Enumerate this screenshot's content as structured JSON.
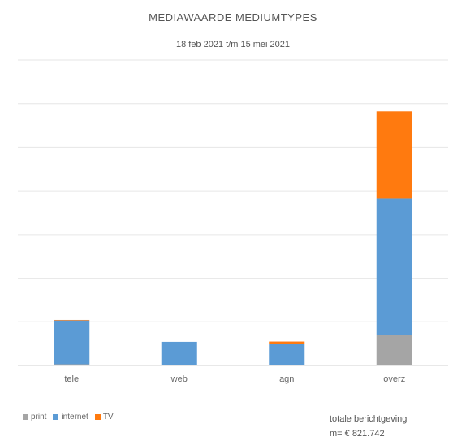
{
  "chart_data": {
    "type": "bar",
    "stacked": true,
    "title": "MEDIAWAARDE MEDIUMTYPES",
    "subtitle": "18 feb 2021 t/m 15 mei 2021",
    "categories": [
      "tele",
      "web",
      "agn",
      "overz"
    ],
    "series": [
      {
        "name": "print",
        "color": "#a5a5a5",
        "values": [
          12000,
          2000,
          5000,
          300000
        ]
      },
      {
        "name": "internet",
        "color": "#5b9bd5",
        "values": [
          430000,
          230000,
          210000,
          1340000
        ]
      },
      {
        "name": "TV",
        "color": "#ff7a0f",
        "values": [
          5000,
          0,
          20000,
          855000
        ]
      }
    ],
    "ylim": [
      0,
      3000000
    ],
    "grid": true,
    "legend_position": "bottom-left",
    "note": [
      "totale berichtgeving",
      "m= € 821.742"
    ]
  }
}
